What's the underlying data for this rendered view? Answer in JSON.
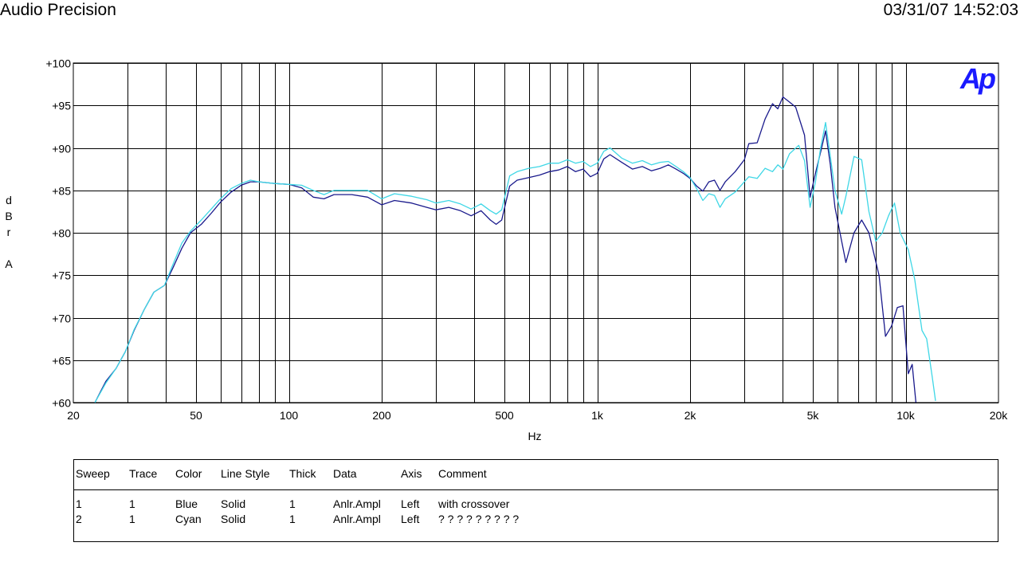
{
  "header": {
    "title": "Audio Precision",
    "timestamp": "03/31/07 14:52:03"
  },
  "logo": {
    "text": "Ap",
    "color": "#1a1aff"
  },
  "chart_data": {
    "type": "line",
    "xlabel": "Hz",
    "ylabel": [
      "d",
      "B",
      "r",
      "",
      "A"
    ],
    "xscale": "log",
    "xlim": [
      20,
      20000
    ],
    "ylim": [
      60,
      100
    ],
    "grid": true,
    "x_ticks": [
      {
        "v": 20,
        "label": "20"
      },
      {
        "v": 50,
        "label": "50"
      },
      {
        "v": 100,
        "label": "100"
      },
      {
        "v": 200,
        "label": "200"
      },
      {
        "v": 500,
        "label": "500"
      },
      {
        "v": 1000,
        "label": "1k"
      },
      {
        "v": 2000,
        "label": "2k"
      },
      {
        "v": 5000,
        "label": "5k"
      },
      {
        "v": 10000,
        "label": "10k"
      },
      {
        "v": 20000,
        "label": "20k"
      }
    ],
    "y_ticks": [
      {
        "v": 100,
        "label": "+100"
      },
      {
        "v": 95,
        "label": "+95"
      },
      {
        "v": 90,
        "label": "+90"
      },
      {
        "v": 85,
        "label": "+85"
      },
      {
        "v": 80,
        "label": "+80"
      },
      {
        "v": 75,
        "label": "+75"
      },
      {
        "v": 70,
        "label": "+70"
      },
      {
        "v": 65,
        "label": "+65"
      },
      {
        "v": 60,
        "label": "+60"
      }
    ],
    "series": [
      {
        "name": "with crossover",
        "color": "#1a1a8c",
        "points": [
          [
            23.5,
            60
          ],
          [
            25.5,
            62.5
          ],
          [
            27.5,
            64
          ],
          [
            29.5,
            66
          ],
          [
            31.5,
            68.5
          ],
          [
            34,
            71
          ],
          [
            36.5,
            73
          ],
          [
            39.5,
            73.8
          ],
          [
            42,
            75.8
          ],
          [
            45,
            78.2
          ],
          [
            48,
            80
          ],
          [
            52,
            81
          ],
          [
            56,
            82.3
          ],
          [
            60,
            83.6
          ],
          [
            65,
            84.8
          ],
          [
            70,
            85.6
          ],
          [
            75,
            86
          ],
          [
            80,
            86
          ],
          [
            90,
            85.8
          ],
          [
            100,
            85.7
          ],
          [
            110,
            85.3
          ],
          [
            120,
            84.2
          ],
          [
            130,
            84
          ],
          [
            140,
            84.5
          ],
          [
            160,
            84.5
          ],
          [
            180,
            84.2
          ],
          [
            200,
            83.3
          ],
          [
            220,
            83.8
          ],
          [
            250,
            83.5
          ],
          [
            280,
            83
          ],
          [
            300,
            82.7
          ],
          [
            330,
            83
          ],
          [
            360,
            82.6
          ],
          [
            390,
            82
          ],
          [
            420,
            82.6
          ],
          [
            450,
            81.5
          ],
          [
            470,
            81
          ],
          [
            490,
            81.5
          ],
          [
            520,
            85.5
          ],
          [
            550,
            86.2
          ],
          [
            600,
            86.5
          ],
          [
            650,
            86.8
          ],
          [
            700,
            87.2
          ],
          [
            750,
            87.4
          ],
          [
            800,
            87.8
          ],
          [
            850,
            87.2
          ],
          [
            900,
            87.5
          ],
          [
            950,
            86.6
          ],
          [
            1000,
            87
          ],
          [
            1050,
            88.7
          ],
          [
            1100,
            89.2
          ],
          [
            1200,
            88.3
          ],
          [
            1300,
            87.5
          ],
          [
            1400,
            87.8
          ],
          [
            1500,
            87.3
          ],
          [
            1600,
            87.6
          ],
          [
            1700,
            88
          ],
          [
            1800,
            87.5
          ],
          [
            1900,
            87
          ],
          [
            2000,
            86.4
          ],
          [
            2100,
            85.5
          ],
          [
            2200,
            84.9
          ],
          [
            2300,
            86
          ],
          [
            2400,
            86.2
          ],
          [
            2500,
            85
          ],
          [
            2600,
            86
          ],
          [
            2800,
            87.2
          ],
          [
            3000,
            88.6
          ],
          [
            3100,
            90.5
          ],
          [
            3300,
            90.6
          ],
          [
            3500,
            93.4
          ],
          [
            3700,
            95.2
          ],
          [
            3850,
            94.6
          ],
          [
            4000,
            96
          ],
          [
            4200,
            95.4
          ],
          [
            4400,
            94.8
          ],
          [
            4700,
            91.5
          ],
          [
            4900,
            84.2
          ],
          [
            5100,
            87
          ],
          [
            5300,
            89.5
          ],
          [
            5500,
            92
          ],
          [
            5700,
            88
          ],
          [
            5900,
            83
          ],
          [
            6200,
            79
          ],
          [
            6400,
            76.5
          ],
          [
            6800,
            80
          ],
          [
            7200,
            81.5
          ],
          [
            7600,
            80
          ],
          [
            8200,
            75
          ],
          [
            8600,
            67.8
          ],
          [
            9000,
            69
          ],
          [
            9400,
            71.2
          ],
          [
            9800,
            71.4
          ],
          [
            10200,
            63.4
          ],
          [
            10500,
            64.5
          ],
          [
            10800,
            60
          ]
        ]
      },
      {
        "name": "? ? ? ? ? ? ? ? ?",
        "color": "#3fd7e6",
        "points": [
          [
            23.5,
            60
          ],
          [
            25.5,
            62.3
          ],
          [
            27.5,
            64
          ],
          [
            29.5,
            66
          ],
          [
            31.5,
            68.6
          ],
          [
            34,
            71
          ],
          [
            36.5,
            73
          ],
          [
            39.5,
            73.8
          ],
          [
            42,
            76.2
          ],
          [
            45,
            78.8
          ],
          [
            48,
            80.2
          ],
          [
            52,
            81.5
          ],
          [
            56,
            82.8
          ],
          [
            60,
            84
          ],
          [
            65,
            85.2
          ],
          [
            70,
            85.8
          ],
          [
            75,
            86.2
          ],
          [
            80,
            86
          ],
          [
            90,
            85.8
          ],
          [
            100,
            85.7
          ],
          [
            110,
            85.6
          ],
          [
            120,
            85
          ],
          [
            130,
            84.5
          ],
          [
            140,
            85
          ],
          [
            160,
            85
          ],
          [
            180,
            85
          ],
          [
            200,
            84
          ],
          [
            220,
            84.6
          ],
          [
            250,
            84.3
          ],
          [
            280,
            83.9
          ],
          [
            300,
            83.5
          ],
          [
            330,
            83.8
          ],
          [
            360,
            83.4
          ],
          [
            390,
            82.8
          ],
          [
            420,
            83.4
          ],
          [
            450,
            82.6
          ],
          [
            470,
            82.2
          ],
          [
            490,
            82.7
          ],
          [
            520,
            86.7
          ],
          [
            550,
            87.2
          ],
          [
            600,
            87.6
          ],
          [
            650,
            87.8
          ],
          [
            700,
            88.2
          ],
          [
            750,
            88.2
          ],
          [
            800,
            88.6
          ],
          [
            850,
            88.2
          ],
          [
            900,
            88.4
          ],
          [
            950,
            87.8
          ],
          [
            1000,
            88.2
          ],
          [
            1050,
            89.6
          ],
          [
            1100,
            90
          ],
          [
            1200,
            88.8
          ],
          [
            1300,
            88.2
          ],
          [
            1400,
            88.5
          ],
          [
            1500,
            88
          ],
          [
            1600,
            88.3
          ],
          [
            1700,
            88.4
          ],
          [
            1800,
            87.8
          ],
          [
            1900,
            87.2
          ],
          [
            2000,
            86.5
          ],
          [
            2100,
            85.2
          ],
          [
            2200,
            83.8
          ],
          [
            2300,
            84.6
          ],
          [
            2400,
            84.4
          ],
          [
            2500,
            83
          ],
          [
            2600,
            84
          ],
          [
            2800,
            84.8
          ],
          [
            3000,
            86
          ],
          [
            3100,
            86.6
          ],
          [
            3300,
            86.4
          ],
          [
            3500,
            87.6
          ],
          [
            3700,
            87.2
          ],
          [
            3850,
            88
          ],
          [
            4000,
            87.5
          ],
          [
            4200,
            89.3
          ],
          [
            4500,
            90.3
          ],
          [
            4700,
            88.5
          ],
          [
            4900,
            83
          ],
          [
            5100,
            86
          ],
          [
            5300,
            90
          ],
          [
            5500,
            93
          ],
          [
            5700,
            89
          ],
          [
            5900,
            85
          ],
          [
            6200,
            82.2
          ],
          [
            6400,
            84.3
          ],
          [
            6800,
            89
          ],
          [
            7200,
            88.6
          ],
          [
            7600,
            82.5
          ],
          [
            8000,
            79
          ],
          [
            8400,
            80
          ],
          [
            8800,
            82
          ],
          [
            9200,
            83.5
          ],
          [
            9600,
            80
          ],
          [
            10200,
            78
          ],
          [
            10700,
            74.5
          ],
          [
            11300,
            68.5
          ],
          [
            11700,
            67.5
          ],
          [
            12200,
            63
          ],
          [
            12500,
            60.2
          ]
        ]
      }
    ]
  },
  "legend_table": {
    "headers": [
      "Sweep",
      "Trace",
      "Color",
      "Line Style",
      "Thick",
      "Data",
      "Axis",
      "Comment"
    ],
    "rows": [
      [
        "1",
        "1",
        "Blue",
        "Solid",
        "1",
        "Anlr.Ampl",
        "Left",
        "with crossover"
      ],
      [
        "2",
        "1",
        "Cyan",
        "Solid",
        "1",
        "Anlr.Ampl",
        "Left",
        "? ? ? ? ? ? ? ? ?"
      ]
    ]
  }
}
